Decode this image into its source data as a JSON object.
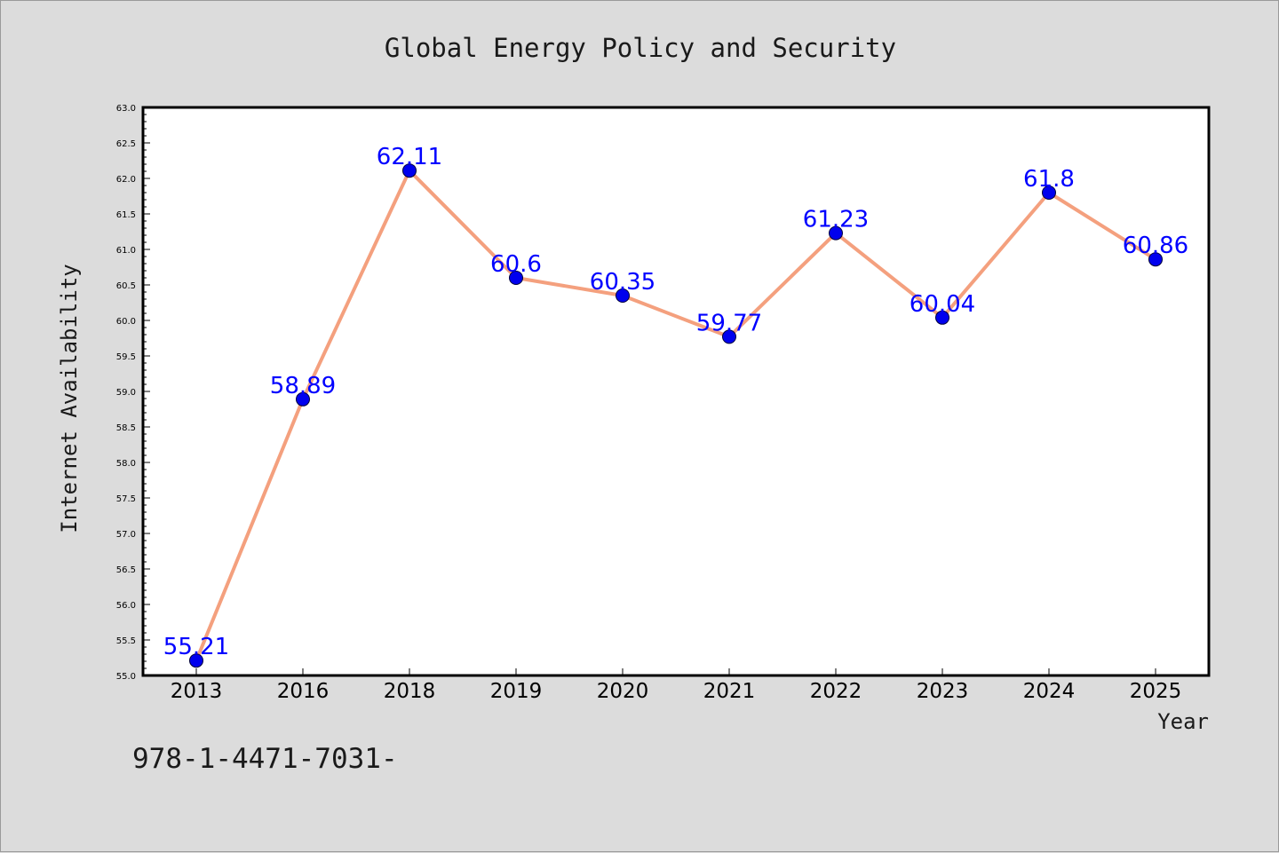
{
  "chart_data": {
    "type": "line",
    "title": "Global Energy Policy and Security",
    "xlabel": "Year",
    "ylabel": "Internet Availability",
    "categories": [
      "2013",
      "2016",
      "2018",
      "2019",
      "2020",
      "2021",
      "2022",
      "2023",
      "2024",
      "2025"
    ],
    "values": [
      55.21,
      58.89,
      62.11,
      60.6,
      60.35,
      59.77,
      61.23,
      60.04,
      61.8,
      60.86
    ],
    "data_labels": [
      "55.21",
      "58.89",
      "62.11",
      "60.6",
      "60.35",
      "59.77",
      "61.23",
      "60.04",
      "61.8",
      "60.86"
    ],
    "ylim": [
      55.0,
      63.0
    ],
    "yticks": [
      "55.0",
      "55.5",
      "56.0",
      "56.5",
      "57.0",
      "57.5",
      "58.0",
      "58.5",
      "59.0",
      "59.5",
      "60.0",
      "60.5",
      "61.0",
      "61.5",
      "62.0",
      "62.5",
      "63.0"
    ],
    "grid": false,
    "line_color": "#f4a07e",
    "marker_color": "#0000ee",
    "label_color": "#0000ff"
  },
  "footer": {
    "isbn": "978-1-4471-7031-"
  }
}
